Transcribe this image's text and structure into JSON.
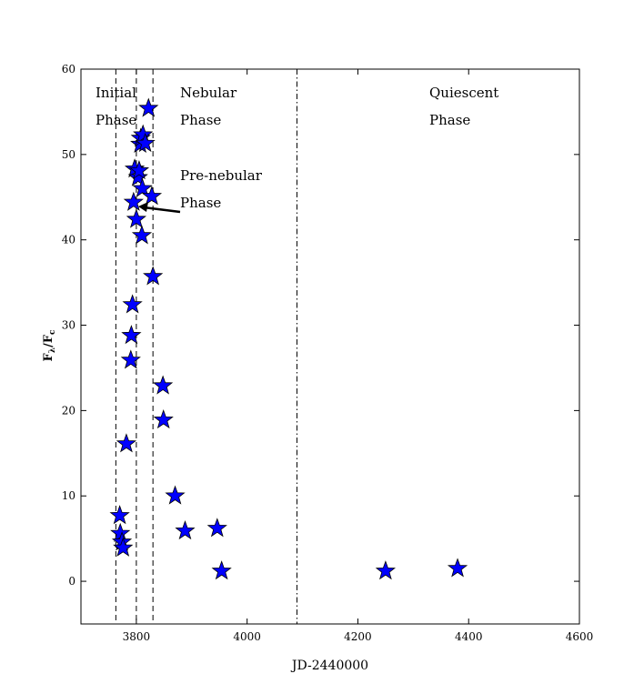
{
  "chart_data": {
    "type": "scatter",
    "xlabel": "JD-2440000",
    "ylabel": "F",
    "ylabel_sub1": "λ",
    "ylabel_mid": "/F",
    "ylabel_sub2": "c",
    "xlim": [
      3700,
      4600
    ],
    "ylim": [
      -5,
      60
    ],
    "x_ticks": [
      3800,
      4000,
      4200,
      4400,
      4600
    ],
    "x_tick_labels": [
      "3800",
      "4000",
      "4200",
      "4400",
      "4600"
    ],
    "y_ticks": [
      0,
      10,
      20,
      30,
      40,
      50,
      60
    ],
    "y_tick_labels": [
      "0",
      "10",
      "20",
      "30",
      "40",
      "50",
      "60"
    ],
    "marker": "star",
    "marker_color": "#0000ff",
    "grid": false,
    "series": [
      {
        "points": [
          {
            "x": 3770,
            "y": 7.7
          },
          {
            "x": 3771,
            "y": 5.6
          },
          {
            "x": 3774,
            "y": 4.6
          },
          {
            "x": 3776,
            "y": 3.9
          },
          {
            "x": 3782,
            "y": 16.1
          },
          {
            "x": 3790,
            "y": 25.9
          },
          {
            "x": 3791,
            "y": 28.8
          },
          {
            "x": 3793,
            "y": 32.4
          },
          {
            "x": 3795,
            "y": 44.4
          },
          {
            "x": 3797,
            "y": 48.3
          },
          {
            "x": 3800,
            "y": 42.4
          },
          {
            "x": 3803,
            "y": 47.3
          },
          {
            "x": 3805,
            "y": 48.1
          },
          {
            "x": 3807,
            "y": 51.2
          },
          {
            "x": 3808,
            "y": 51.9
          },
          {
            "x": 3810,
            "y": 40.5
          },
          {
            "x": 3811,
            "y": 46.0
          },
          {
            "x": 3812,
            "y": 52.3
          },
          {
            "x": 3816,
            "y": 51.3
          },
          {
            "x": 3822,
            "y": 55.4
          },
          {
            "x": 3828,
            "y": 45.1
          },
          {
            "x": 3830,
            "y": 35.7
          },
          {
            "x": 3848,
            "y": 22.9
          },
          {
            "x": 3849,
            "y": 18.9
          },
          {
            "x": 3870,
            "y": 10.0
          },
          {
            "x": 3888,
            "y": 5.9
          },
          {
            "x": 3946,
            "y": 6.2
          },
          {
            "x": 3954,
            "y": 1.2
          },
          {
            "x": 4250,
            "y": 1.2
          },
          {
            "x": 4380,
            "y": 1.5
          }
        ]
      }
    ],
    "phase_boundaries": [
      {
        "x": 3763,
        "style": "dashed"
      },
      {
        "x": 3800,
        "style": "dashed"
      },
      {
        "x": 3830,
        "style": "dashed"
      },
      {
        "x": 4090,
        "style": "dashdot"
      }
    ],
    "annotations": {
      "initial": {
        "line1": "Initial",
        "line2": "Phase"
      },
      "nebular": {
        "line1": "Nebular",
        "line2": "Phase"
      },
      "prenebular": {
        "line1": "Pre-nebular",
        "line2": "Phase"
      },
      "quiescent": {
        "line1": "Quiescent",
        "line2": "Phase"
      }
    }
  }
}
